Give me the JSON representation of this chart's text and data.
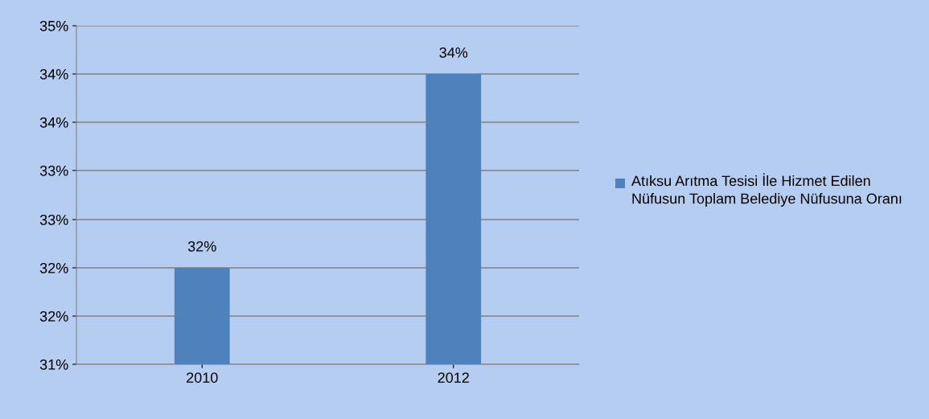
{
  "chart_data": {
    "type": "bar",
    "categories": [
      "2010",
      "2012"
    ],
    "series": [
      {
        "name": "Atıksu Arıtma Tesisi İle Hizmet Edilen Nüfusun Toplam Belediye Nüfusuna Oranı",
        "color": "#4f81bd",
        "values": [
          32.14,
          34.43
        ],
        "value_labels": [
          "32%",
          "34%"
        ]
      }
    ],
    "ylim": [
      31,
      35
    ],
    "yticks": [
      {
        "value": 31,
        "label": "31%"
      },
      {
        "value": 31.57,
        "label": "32%"
      },
      {
        "value": 32.14,
        "label": "32%"
      },
      {
        "value": 32.71,
        "label": "33%"
      },
      {
        "value": 33.29,
        "label": "33%"
      },
      {
        "value": 33.86,
        "label": "34%"
      },
      {
        "value": 34.43,
        "label": "34%"
      },
      {
        "value": 35,
        "label": "35%"
      }
    ],
    "grid": "y",
    "legend": "right"
  }
}
